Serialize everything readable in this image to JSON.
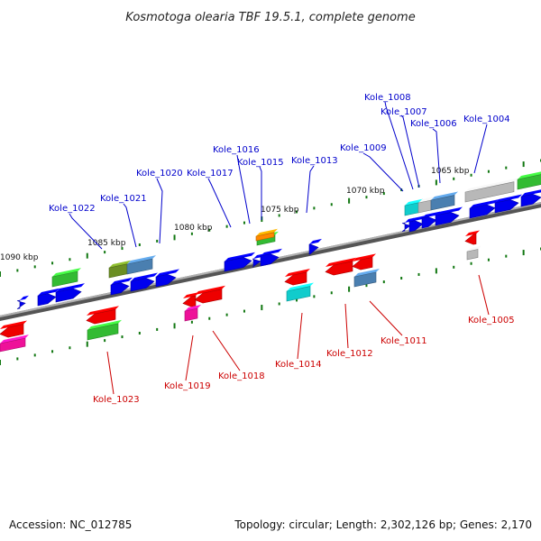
{
  "title": "Kosmotoga olearia TBF 19.5.1, complete genome",
  "accession": "Accession: NC_012785",
  "topology": "Topology: circular; Length: 2,302,126 bp; Genes: 2,170",
  "scale_labels": [
    "1090 kbp",
    "1085 kbp",
    "1080 kbp",
    "1075 kbp",
    "1070 kbp",
    "1065 kbp"
  ],
  "top_genes": [
    "Kole_1008",
    "Kole_1007",
    "Kole_1006",
    "Kole_1004",
    "Kole_1009",
    "Kole_1016",
    "Kole_1015",
    "Kole_1013",
    "Kole_1020",
    "Kole_1017",
    "Kole_1021",
    "Kole_1022"
  ],
  "bottom_genes": [
    "Kole_1005",
    "Kole_1011",
    "Kole_1012",
    "Kole_1014",
    "Kole_1018",
    "Kole_1019",
    "Kole_1023"
  ],
  "colors": {
    "forward_label": "#0000cc",
    "reverse_label": "#cc0000",
    "backbone": "#8a8a8a",
    "blue": "#0000ee",
    "red": "#ee0000",
    "green": "#33bb33",
    "steel": "#4a7fb0",
    "cyan": "#11cccc",
    "gray": "#b8b8b8",
    "olive": "#6b8e23",
    "magenta": "#ee1199",
    "orange": "#ff8800",
    "tick": "#117711"
  }
}
